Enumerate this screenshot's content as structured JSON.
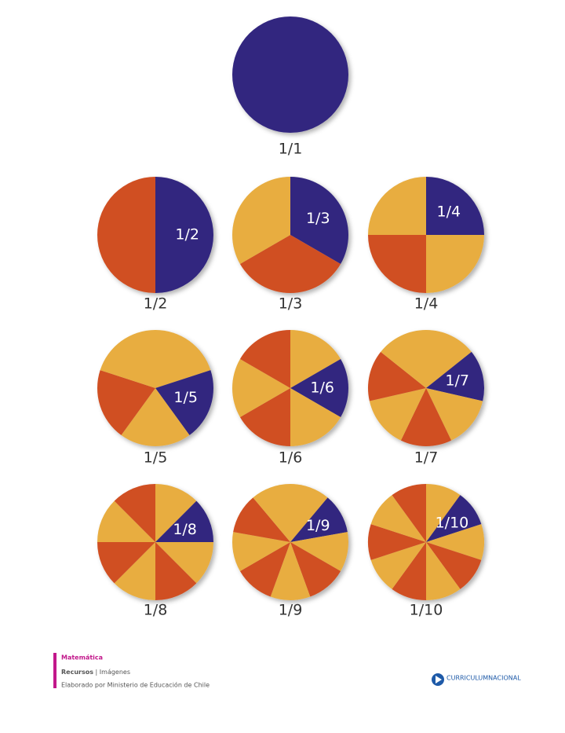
{
  "circles": [
    {
      "label": "1/1",
      "parts": 1
    },
    {
      "label": "1/2",
      "inner_label": "1/2",
      "parts": 2
    },
    {
      "label": "1/3",
      "inner_label": "1/3",
      "parts": 3
    },
    {
      "label": "1/4",
      "inner_label": "1/4",
      "parts": 4
    },
    {
      "label": "1/5",
      "inner_label": "1/5",
      "parts": 5
    },
    {
      "label": "1/6",
      "inner_label": "1/6",
      "parts": 6
    },
    {
      "label": "1/7",
      "inner_label": "1/7",
      "parts": 7
    },
    {
      "label": "1/8",
      "inner_label": "1/8",
      "parts": 8
    },
    {
      "label": "1/9",
      "inner_label": "1/9",
      "parts": 9
    },
    {
      "label": "1/10",
      "inner_label": "1/10",
      "parts": 10
    }
  ],
  "footer": {
    "subject": "Matemática",
    "section": "Recursos",
    "separator": "|",
    "subsection": "Imágenes",
    "credit": "Elaborado por Ministerio de Educación de Chile",
    "logo": "CURRICULUMNACIONAL"
  }
}
